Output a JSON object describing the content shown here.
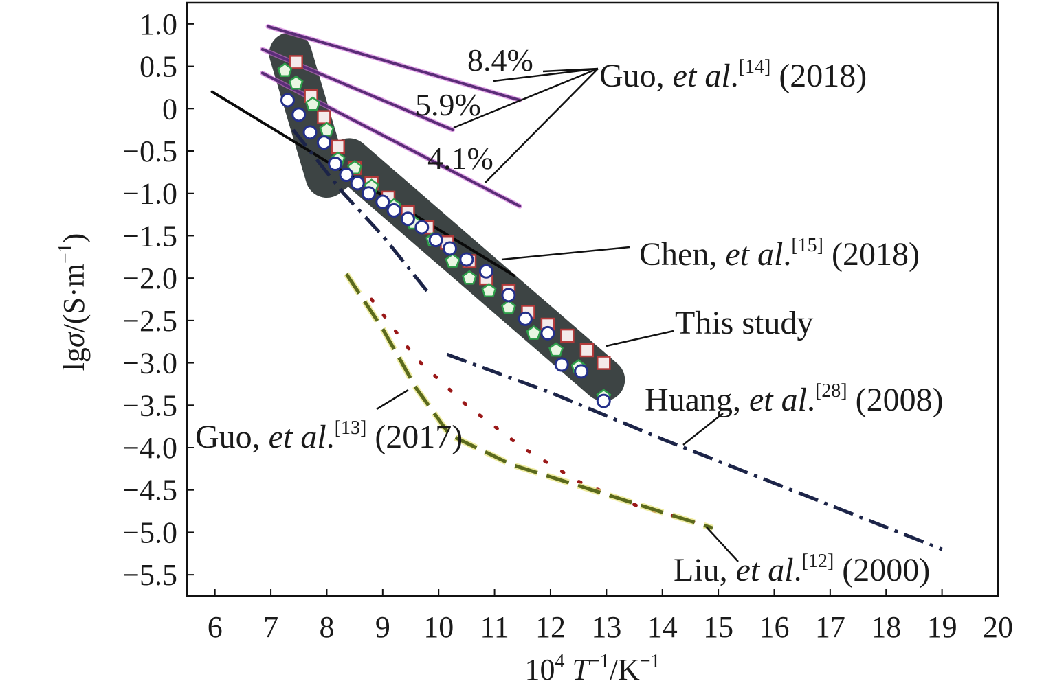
{
  "chart_data": {
    "type": "scatter",
    "title": "",
    "xlabel": {
      "base": "10",
      "exp1": "4",
      "mid": " T",
      "exp2": "−1",
      "tail": "/K",
      "exp3": "−1"
    },
    "ylabel": {
      "pre": "lg",
      "sym": "σ",
      "mid": "/(S·m",
      "exp": "−1",
      "post": ")"
    },
    "xlim": [
      5.5,
      20
    ],
    "ylim": [
      -5.75,
      1.25
    ],
    "xticks": [
      6,
      7,
      8,
      9,
      10,
      11,
      12,
      13,
      14,
      15,
      16,
      17,
      18,
      19,
      20
    ],
    "yticks": [
      1.0,
      0.5,
      0,
      -0.5,
      -1.0,
      -1.5,
      -2.0,
      -2.5,
      -3.0,
      -3.5,
      -4.0,
      -4.5,
      -5.0,
      -5.5
    ],
    "ytick_labels": [
      "1.0",
      "0.5",
      "0",
      "−0.5",
      "−1.0",
      "−1.5",
      "−2.0",
      "−2.5",
      "−3.0",
      "−3.5",
      "−4.0",
      "−4.5",
      "−5.0",
      "−5.5"
    ],
    "grid": false,
    "highlight_band": {
      "name": "this-study-band",
      "color": "#3d4444",
      "x": [
        7.35,
        8.0,
        8.4,
        12.95
      ],
      "y": [
        0.65,
        -0.8,
        -0.6,
        -3.2
      ]
    },
    "series": [
      {
        "name": "Guo 2018 8.4%",
        "style": "line",
        "color": "#5b2d78",
        "x": [
          6.95,
          11.45
        ],
        "y": [
          0.97,
          0.1
        ]
      },
      {
        "name": "Guo 2018 5.9%",
        "style": "line",
        "color": "#5b2d78",
        "x": [
          6.85,
          10.25
        ],
        "y": [
          0.7,
          -0.25
        ]
      },
      {
        "name": "Guo 2018 4.1%",
        "style": "line",
        "color": "#5b2d78",
        "x": [
          6.85,
          11.45
        ],
        "y": [
          0.42,
          -1.15
        ]
      },
      {
        "name": "Chen 2018",
        "style": "line",
        "color": "#0a0a0a",
        "x": [
          5.95,
          11.35
        ],
        "y": [
          0.2,
          -1.97
        ]
      },
      {
        "name": "Huang 2008 high",
        "style": "dashdot",
        "color": "#1c2448",
        "x": [
          7.4,
          8.3,
          9.0,
          9.85
        ],
        "y": [
          -0.25,
          -1.0,
          -1.5,
          -2.2
        ]
      },
      {
        "name": "Huang 2008 low",
        "style": "dashdot",
        "color": "#1c2448",
        "x": [
          10.15,
          12.0,
          14.0,
          16.5,
          19.0
        ],
        "y": [
          -2.9,
          -3.35,
          -3.9,
          -4.55,
          -5.2
        ]
      },
      {
        "name": "Liu 2000",
        "style": "dotted",
        "color": "#9a1818",
        "x": [
          8.8,
          9.6,
          10.5,
          11.5,
          12.5,
          13.6,
          14.7
        ],
        "y": [
          -2.25,
          -2.95,
          -3.5,
          -4.0,
          -4.4,
          -4.7,
          -4.9
        ]
      },
      {
        "name": "Guo 2017",
        "style": "dashed",
        "color": "#5b6a1d",
        "x": [
          8.35,
          9.0,
          9.6,
          10.2,
          11.3,
          12.5,
          13.7,
          14.9
        ],
        "y": [
          -1.95,
          -2.6,
          -3.3,
          -3.85,
          -4.2,
          -4.45,
          -4.7,
          -4.95
        ]
      },
      {
        "name": "This study (squares)",
        "style": "marker-square",
        "color": "#b23a3a",
        "x": [
          7.45,
          7.72,
          7.95,
          8.2,
          8.5,
          8.8,
          9.1,
          9.45,
          9.8,
          10.15,
          10.55,
          10.85,
          11.25,
          11.6,
          11.95,
          12.3,
          12.65,
          12.95
        ],
        "y": [
          0.55,
          0.15,
          -0.1,
          -0.45,
          -0.7,
          -0.88,
          -1.05,
          -1.22,
          -1.4,
          -1.58,
          -1.8,
          -2.0,
          -2.15,
          -2.4,
          -2.55,
          -2.68,
          -2.85,
          -3.0
        ]
      },
      {
        "name": "This study (pentagons)",
        "style": "marker-pentagon",
        "color": "#2e9e4a",
        "x": [
          7.25,
          7.45,
          7.75,
          8.0,
          8.2,
          8.5,
          8.8,
          9.2,
          9.55,
          9.9,
          10.25,
          10.55,
          10.9,
          11.25,
          11.7,
          12.1,
          12.5,
          12.95
        ],
        "y": [
          0.45,
          0.3,
          0.05,
          -0.25,
          -0.6,
          -0.7,
          -0.92,
          -1.15,
          -1.35,
          -1.55,
          -1.8,
          -2.0,
          -2.15,
          -2.35,
          -2.65,
          -2.85,
          -3.05,
          -3.4
        ]
      },
      {
        "name": "This study (circles)",
        "style": "marker-circle",
        "color": "#24308a",
        "x": [
          7.3,
          7.5,
          7.7,
          7.95,
          8.15,
          8.35,
          8.55,
          8.75,
          9.0,
          9.2,
          9.45,
          9.7,
          9.95,
          10.2,
          10.5,
          10.85,
          11.25,
          11.55,
          11.95,
          12.2,
          12.55,
          12.95
        ],
        "y": [
          0.1,
          -0.07,
          -0.28,
          -0.4,
          -0.65,
          -0.78,
          -0.88,
          -1.0,
          -1.1,
          -1.2,
          -1.3,
          -1.4,
          -1.55,
          -1.65,
          -1.78,
          -1.92,
          -2.2,
          -2.48,
          -2.65,
          -3.02,
          -3.1,
          -3.45
        ]
      }
    ],
    "annotations": [
      {
        "name": "pct-84",
        "text": "8.4%"
      },
      {
        "name": "pct-59",
        "text": "5.9%"
      },
      {
        "name": "pct-41",
        "text": "4.1%"
      },
      {
        "name": "label-guo-2018",
        "author": "Guo, ",
        "etal": "et al",
        "ref": "[14]",
        "year": " (2018)"
      },
      {
        "name": "label-chen-2018",
        "author": "Chen, ",
        "etal": "et al",
        "ref": "[15]",
        "year": " (2018)"
      },
      {
        "name": "label-this-study",
        "text": "This study"
      },
      {
        "name": "label-huang-2008",
        "author": "Huang, ",
        "etal": "et al",
        "ref": "[28]",
        "year": " (2008)"
      },
      {
        "name": "label-guo-2017",
        "author": "Guo, ",
        "etal": "et al",
        "ref": "[13]",
        "year": " (2017)"
      },
      {
        "name": "label-liu-2000",
        "author": "Liu, ",
        "etal": "et al",
        "ref": "[12]",
        "year": " (2000)"
      }
    ]
  }
}
